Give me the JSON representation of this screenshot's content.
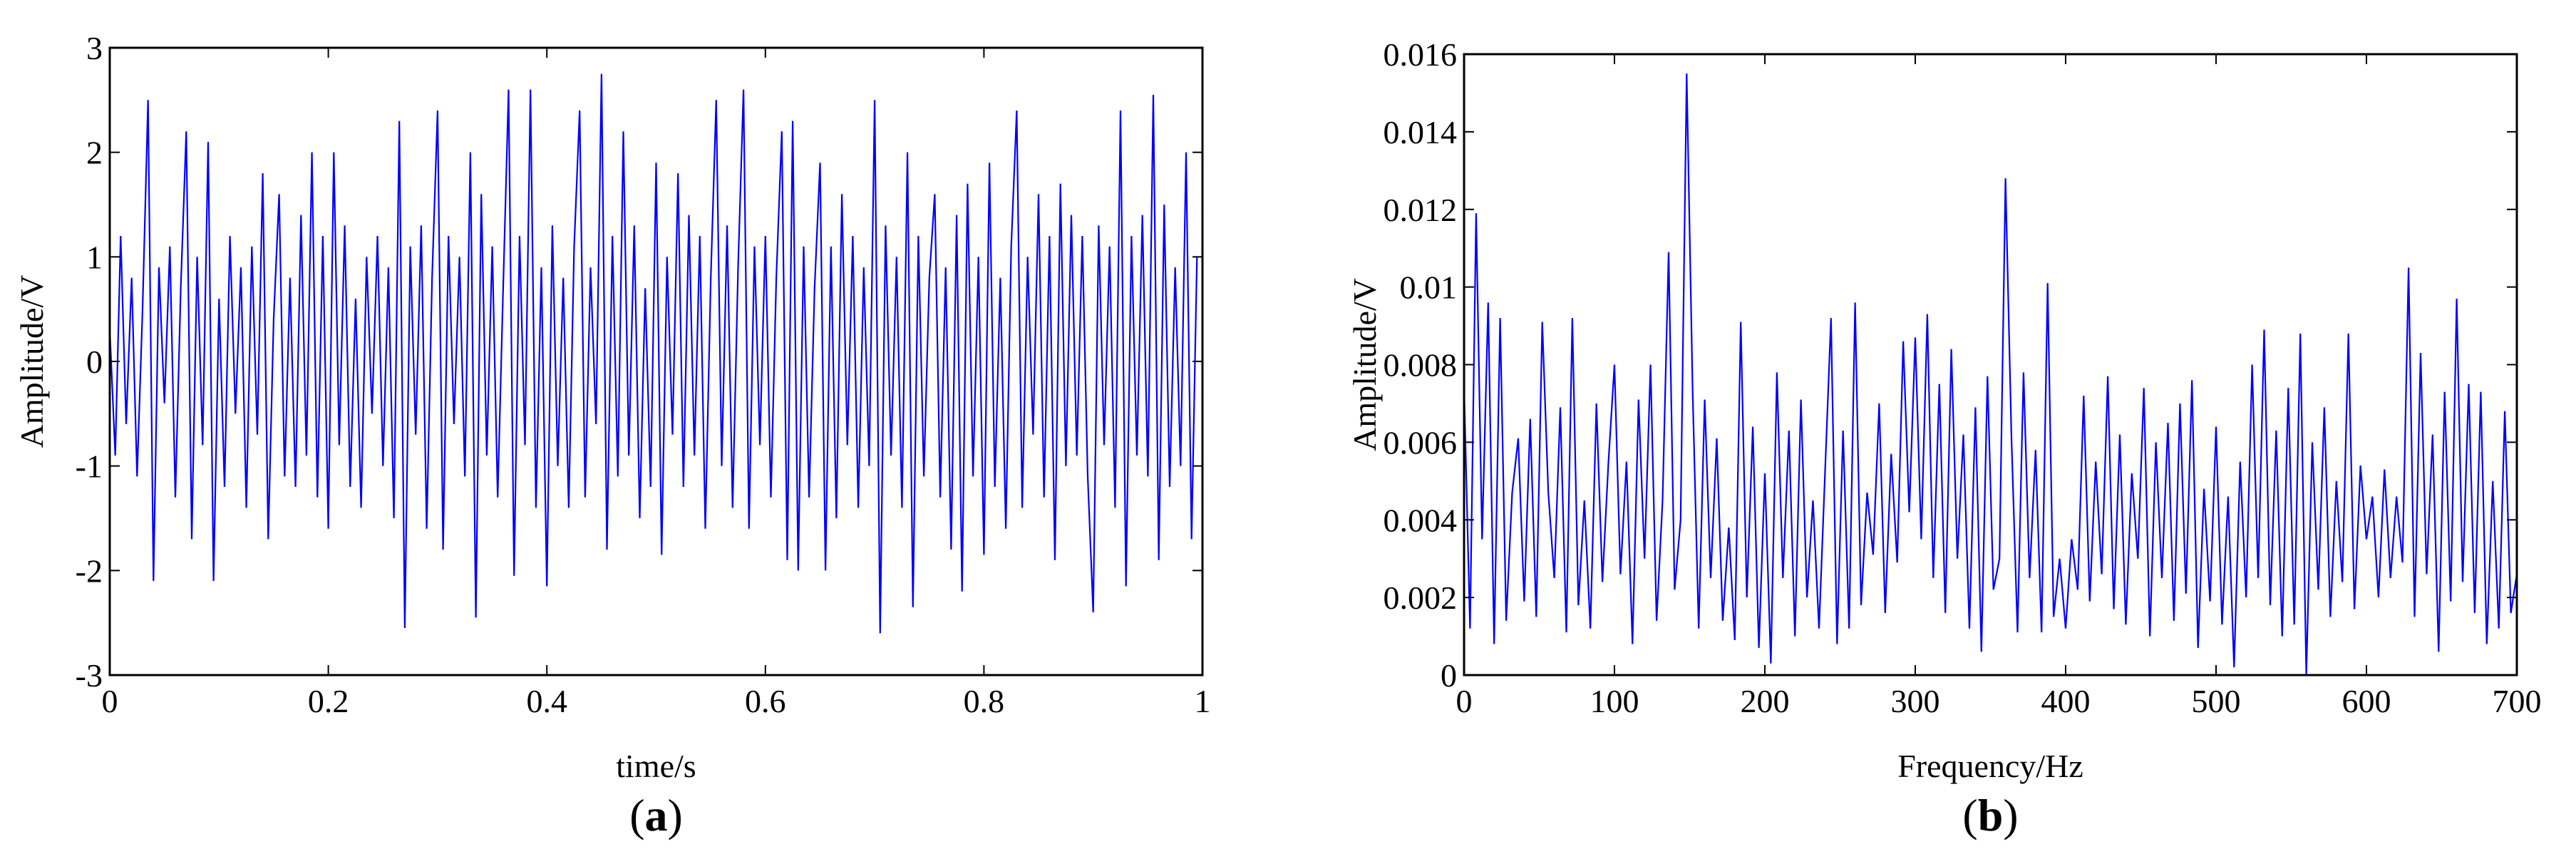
{
  "chart_data": [
    {
      "type": "line",
      "panel_label": "a",
      "xlabel": "time/s",
      "ylabel": "Amplitude/V",
      "xlim": [
        0,
        1
      ],
      "ylim": [
        -3,
        3
      ],
      "xticks": [
        "0",
        "0.2",
        "0.4",
        "0.6",
        "0.8",
        "1"
      ],
      "yticks": [
        "-3",
        "-2",
        "-1",
        "0",
        "1",
        "2",
        "3"
      ],
      "grid": false,
      "color": "#0000ff",
      "x_step": 0.005,
      "values": [
        0.3,
        -0.9,
        1.2,
        -0.6,
        0.8,
        -1.1,
        0.5,
        2.5,
        -2.1,
        0.9,
        -0.4,
        1.1,
        -1.3,
        0.7,
        2.2,
        -1.7,
        1.0,
        -0.8,
        2.1,
        -2.1,
        0.6,
        -1.2,
        1.2,
        -0.5,
        0.9,
        -1.4,
        1.1,
        -0.7,
        1.8,
        -1.7,
        0.4,
        1.6,
        -1.1,
        0.8,
        -1.2,
        1.4,
        -0.9,
        2.0,
        -1.3,
        1.2,
        -1.6,
        2.0,
        -0.8,
        1.3,
        -1.2,
        0.6,
        -1.4,
        1.0,
        -0.5,
        1.2,
        -1.0,
        0.9,
        -1.5,
        2.3,
        -2.55,
        1.1,
        -0.7,
        1.3,
        -1.6,
        0.8,
        2.4,
        -1.8,
        1.2,
        -0.6,
        1.0,
        -1.1,
        2.0,
        -2.45,
        1.6,
        -0.9,
        1.1,
        -1.3,
        0.7,
        2.6,
        -2.05,
        1.2,
        -0.8,
        2.6,
        -1.4,
        0.9,
        -2.15,
        1.3,
        -1.0,
        0.8,
        -1.4,
        1.1,
        2.4,
        -1.3,
        0.9,
        -0.6,
        2.75,
        -1.8,
        1.2,
        -1.1,
        2.2,
        -0.9,
        1.3,
        -1.5,
        0.7,
        -1.2,
        1.9,
        -1.85,
        1.0,
        -0.7,
        1.8,
        -1.2,
        1.4,
        -0.9,
        1.2,
        -1.6,
        0.8,
        2.5,
        -1.0,
        1.3,
        -1.4,
        0.9,
        2.6,
        -1.6,
        1.1,
        -0.8,
        1.2,
        -1.3,
        0.8,
        2.2,
        -1.9,
        2.3,
        -2.0,
        1.1,
        -1.3,
        0.7,
        1.9,
        -2.0,
        1.1,
        -1.5,
        1.6,
        -0.8,
        1.2,
        -1.4,
        0.9,
        -1.0,
        2.5,
        -2.6,
        1.3,
        -0.9,
        1.0,
        -1.4,
        2.0,
        -2.35,
        1.2,
        -1.1,
        0.8,
        1.6,
        -1.3,
        0.9,
        -1.8,
        1.4,
        -2.2,
        1.7,
        -1.1,
        1.0,
        -1.85,
        1.9,
        -1.2,
        0.8,
        -1.6,
        1.1,
        2.4,
        -1.4,
        1.0,
        -0.7,
        1.6,
        -1.3,
        1.2,
        -1.9,
        1.7,
        -1.0,
        1.4,
        -0.9,
        1.2,
        -1.1,
        -2.4,
        1.3,
        -0.8,
        1.1,
        -1.4,
        2.4,
        -2.15,
        1.2,
        -0.9,
        1.4,
        -1.1,
        2.55,
        -1.9,
        1.5,
        -1.2,
        0.9,
        -1.0,
        2.0,
        -1.7,
        1.0
      ]
    },
    {
      "type": "line",
      "panel_label": "b",
      "xlabel": "Frequency/Hz",
      "ylabel": "Amplitude/V",
      "xlim": [
        0,
        700
      ],
      "ylim": [
        0,
        0.016
      ],
      "xticks": [
        "0",
        "100",
        "200",
        "300",
        "400",
        "500",
        "600",
        "700"
      ],
      "yticks": [
        "0",
        "0.002",
        "0.004",
        "0.006",
        "0.008",
        "0.01",
        "0.012",
        "0.014",
        "0.016"
      ],
      "grid": false,
      "color": "#0000ff",
      "x_step": 4,
      "values": [
        0.0074,
        0.0012,
        0.0119,
        0.0035,
        0.0096,
        0.0008,
        0.0092,
        0.0014,
        0.0047,
        0.0061,
        0.0019,
        0.0066,
        0.0015,
        0.0091,
        0.0047,
        0.0025,
        0.0069,
        0.0011,
        0.0092,
        0.0018,
        0.0045,
        0.0012,
        0.007,
        0.0024,
        0.0055,
        0.008,
        0.0026,
        0.0055,
        0.0008,
        0.0071,
        0.003,
        0.008,
        0.0014,
        0.0045,
        0.0109,
        0.0022,
        0.004,
        0.0155,
        0.0073,
        0.0012,
        0.0071,
        0.0025,
        0.0061,
        0.0014,
        0.0038,
        0.0009,
        0.0091,
        0.002,
        0.0064,
        0.0007,
        0.0052,
        0.0003,
        0.0078,
        0.0025,
        0.0063,
        0.001,
        0.0071,
        0.002,
        0.0045,
        0.0012,
        0.0052,
        0.0092,
        0.0008,
        0.0063,
        0.0012,
        0.0096,
        0.0018,
        0.0047,
        0.0031,
        0.007,
        0.0016,
        0.0057,
        0.0029,
        0.0086,
        0.0042,
        0.0087,
        0.0035,
        0.0093,
        0.0025,
        0.0075,
        0.0016,
        0.0084,
        0.003,
        0.0062,
        0.0012,
        0.0069,
        0.0006,
        0.0077,
        0.0022,
        0.003,
        0.0128,
        0.0061,
        0.0011,
        0.0078,
        0.0025,
        0.0058,
        0.0011,
        0.0101,
        0.0015,
        0.003,
        0.0012,
        0.0035,
        0.0022,
        0.0072,
        0.0019,
        0.0055,
        0.0026,
        0.0077,
        0.0017,
        0.0062,
        0.0013,
        0.0052,
        0.003,
        0.0074,
        0.001,
        0.006,
        0.0025,
        0.0065,
        0.0014,
        0.007,
        0.0021,
        0.0076,
        0.0007,
        0.0048,
        0.0019,
        0.0064,
        0.0013,
        0.0046,
        0.0002,
        0.0055,
        0.002,
        0.008,
        0.0025,
        0.0089,
        0.0018,
        0.0063,
        0.001,
        0.0074,
        0.0013,
        0.0088,
        0.0,
        0.006,
        0.0022,
        0.0069,
        0.0015,
        0.005,
        0.0024,
        0.0088,
        0.0017,
        0.0054,
        0.0035,
        0.0046,
        0.002,
        0.0053,
        0.0025,
        0.0046,
        0.0029,
        0.0105,
        0.0015,
        0.0083,
        0.0026,
        0.0062,
        0.0006,
        0.0073,
        0.0019,
        0.0097,
        0.0024,
        0.0075,
        0.0016,
        0.0073,
        0.0008,
        0.005,
        0.0012,
        0.0068,
        0.0016,
        0.0026
      ]
    }
  ]
}
